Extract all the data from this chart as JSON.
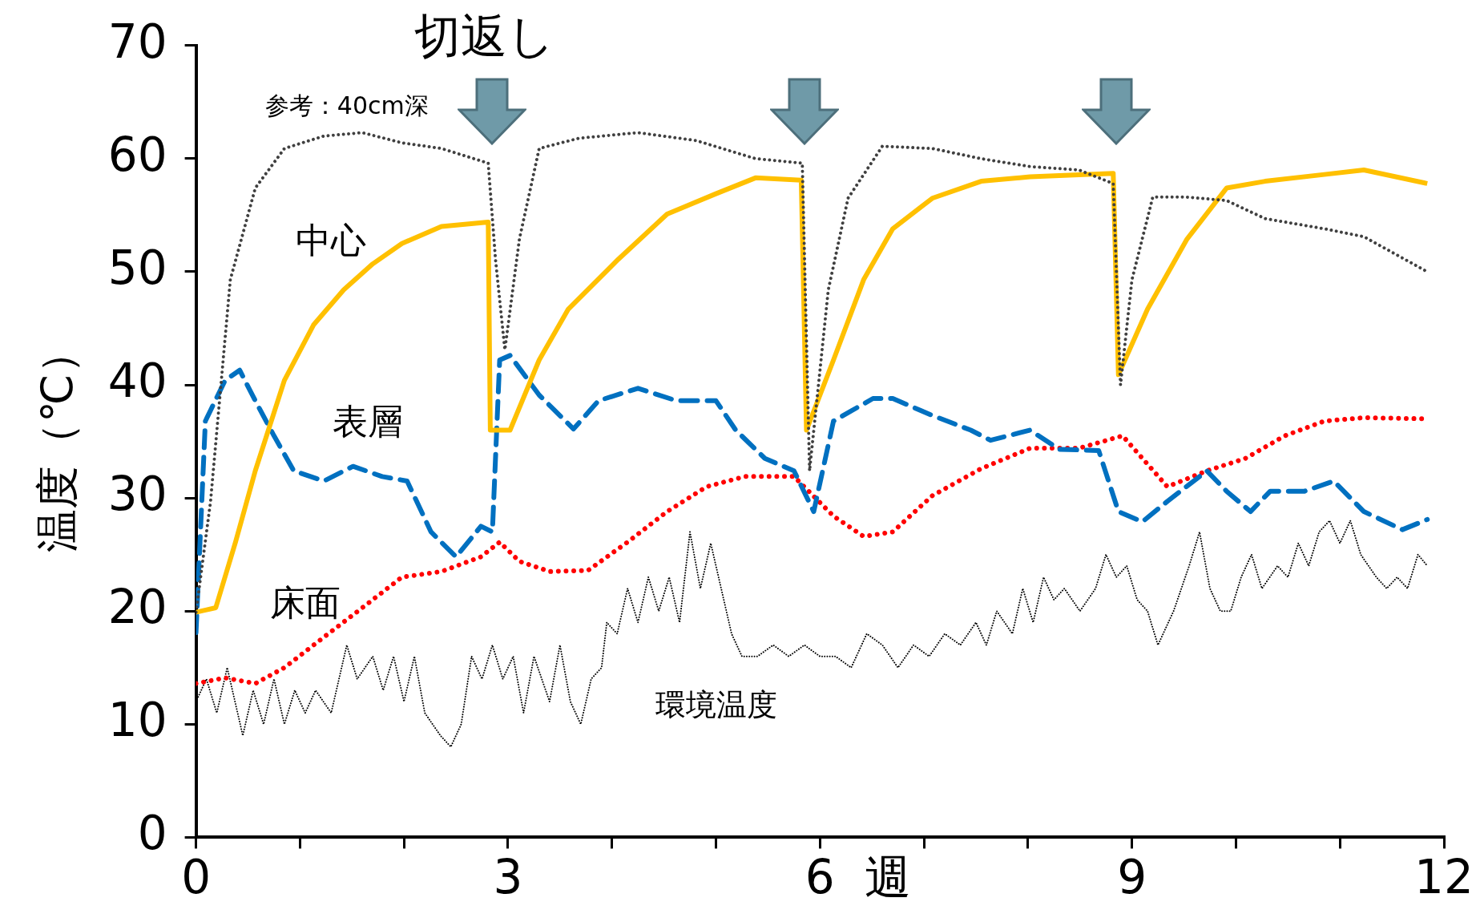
{
  "chart_data": {
    "type": "line",
    "xlabel": "週",
    "ylabel": "温度（℃）",
    "annotations": [
      "切返し"
    ],
    "xlim": [
      0,
      12
    ],
    "xticks": [
      0,
      {
        "value": 1,
        "label": null
      },
      {
        "value": 2,
        "label": null
      },
      3,
      {
        "value": 4,
        "label": null
      },
      {
        "value": 5,
        "label": null
      },
      6,
      {
        "value": 7,
        "label": null
      },
      {
        "value": 8,
        "label": null
      },
      9,
      {
        "value": 10,
        "label": null
      },
      {
        "value": 11,
        "label": null
      },
      12
    ],
    "ylim": [
      0,
      70
    ],
    "yticks": [
      0,
      10,
      20,
      30,
      40,
      50,
      60,
      70
    ],
    "grid": false,
    "legend": false,
    "marker": "none",
    "series": [
      {
        "name": "参考：40cm深",
        "color": "#404040",
        "line_style": "dotted",
        "x": [
          0,
          0.14,
          0.33,
          0.57,
          0.85,
          1.23,
          1.6,
          1.98,
          2.36,
          2.81,
          2.88,
          2.97,
          3.11,
          3.3,
          3.68,
          4.25,
          4.81,
          5.38,
          5.83,
          5.9,
          6.08,
          6.27,
          6.6,
          7.08,
          7.55,
          8.02,
          8.49,
          8.82,
          8.89,
          9.0,
          9.2,
          9.53,
          9.91,
          10.28,
          10.85,
          11.23,
          11.84
        ],
        "values": [
          19.9,
          29.7,
          49.3,
          57.4,
          60.9,
          62,
          62.3,
          61.4,
          60.9,
          59.6,
          51.1,
          43.1,
          52.9,
          60.9,
          61.8,
          62.3,
          61.6,
          60,
          59.6,
          32.4,
          48.4,
          56.5,
          61.1,
          60.9,
          60,
          59.3,
          59,
          57.8,
          40,
          49.3,
          56.6,
          56.6,
          56.3,
          54.7,
          53.8,
          53.1,
          50
        ]
      },
      {
        "name": "中心",
        "color": "#ffc000",
        "line_style": "solid",
        "x": [
          0,
          0.19,
          0.38,
          0.57,
          0.85,
          1.13,
          1.42,
          1.7,
          1.98,
          2.36,
          2.81,
          2.83,
          3.02,
          3.3,
          3.58,
          4.06,
          4.53,
          5.0,
          5.38,
          5.82,
          5.87,
          6.13,
          6.42,
          6.7,
          7.08,
          7.55,
          8.02,
          8.82,
          8.87,
          9.15,
          9.53,
          9.91,
          10.28,
          10.85,
          11.23,
          11.84
        ],
        "values": [
          19.9,
          20.3,
          26.1,
          32.4,
          40.4,
          45.3,
          48.4,
          50.7,
          52.5,
          54,
          54.4,
          36,
          36,
          42.2,
          46.7,
          51.1,
          55.1,
          56.9,
          58.3,
          58.1,
          36,
          42.2,
          49.3,
          53.8,
          56.5,
          58,
          58.4,
          58.7,
          40.9,
          46.7,
          52.9,
          57.4,
          58,
          58.6,
          59,
          57.8
        ]
      },
      {
        "name": "表層",
        "color": "#0070c0",
        "line_style": "dashed",
        "x": [
          0,
          0.09,
          0.28,
          0.42,
          0.57,
          0.75,
          0.94,
          1.23,
          1.51,
          1.79,
          2.03,
          2.26,
          2.5,
          2.74,
          2.85,
          2.92,
          3.02,
          3.3,
          3.63,
          3.87,
          4.25,
          4.62,
          5.0,
          5.19,
          5.47,
          5.75,
          5.94,
          6.13,
          6.51,
          6.7,
          7.08,
          7.45,
          7.64,
          8.02,
          8.3,
          8.68,
          8.87,
          9.1,
          9.34,
          9.72,
          9.91,
          10.14,
          10.33,
          10.66,
          10.94,
          11.23,
          11.6,
          11.84
        ],
        "values": [
          18.1,
          36.8,
          40.4,
          41.3,
          38.6,
          35.5,
          32.4,
          31.5,
          32.8,
          31.9,
          31.5,
          27,
          24.8,
          27.5,
          27,
          42.2,
          42.6,
          39.1,
          36.1,
          38.6,
          39.7,
          38.6,
          38.6,
          36,
          33.5,
          32.4,
          28.8,
          36.8,
          38.8,
          38.8,
          37.3,
          36,
          35.1,
          36,
          34.3,
          34.2,
          28.8,
          27.9,
          29.7,
          32.4,
          30.6,
          28.8,
          30.6,
          30.6,
          31.5,
          28.8,
          27.2,
          28.1
        ]
      },
      {
        "name": "床面",
        "color": "#ff0000",
        "line_style": "dotted",
        "x": [
          0,
          0.28,
          0.57,
          0.85,
          1.23,
          1.6,
          1.98,
          2.36,
          2.74,
          2.92,
          3.11,
          3.4,
          3.77,
          4.15,
          4.53,
          4.91,
          5.28,
          5.75,
          6.13,
          6.42,
          6.7,
          7.08,
          7.55,
          8.02,
          8.49,
          8.91,
          9.34,
          9.72,
          10.09,
          10.47,
          10.85,
          11.23,
          11.84
        ],
        "values": [
          13.6,
          14.1,
          13.6,
          15,
          17.7,
          20.3,
          23,
          23.5,
          24.8,
          26.1,
          24.4,
          23.5,
          23.6,
          26.1,
          28.8,
          31,
          31.9,
          31.9,
          28.4,
          26.6,
          27,
          30.2,
          32.6,
          34.4,
          34.4,
          35.5,
          31,
          32.4,
          33.5,
          35.5,
          36.8,
          37.1,
          37
        ]
      },
      {
        "name": "環境温度",
        "color": "#000000",
        "line_style": "dotted",
        "x": [
          0,
          0.1,
          0.2,
          0.3,
          0.45,
          0.55,
          0.65,
          0.75,
          0.85,
          0.95,
          1.05,
          1.15,
          1.3,
          1.45,
          1.55,
          1.7,
          1.8,
          1.9,
          2.0,
          2.1,
          2.2,
          2.35,
          2.45,
          2.55,
          2.65,
          2.75,
          2.85,
          2.95,
          3.05,
          3.15,
          3.25,
          3.4,
          3.5,
          3.6,
          3.7,
          3.8,
          3.9,
          3.95,
          4.05,
          4.15,
          4.25,
          4.35,
          4.45,
          4.55,
          4.65,
          4.75,
          4.85,
          4.95,
          5.05,
          5.15,
          5.25,
          5.4,
          5.55,
          5.7,
          5.85,
          6.0,
          6.15,
          6.3,
          6.45,
          6.6,
          6.75,
          6.9,
          7.05,
          7.2,
          7.35,
          7.5,
          7.6,
          7.7,
          7.85,
          7.95,
          8.05,
          8.15,
          8.25,
          8.35,
          8.5,
          8.65,
          8.75,
          8.85,
          8.95,
          9.05,
          9.15,
          9.25,
          9.4,
          9.55,
          9.65,
          9.75,
          9.85,
          9.95,
          10.05,
          10.15,
          10.25,
          10.4,
          10.5,
          10.6,
          10.7,
          10.8,
          10.9,
          11.0,
          11.1,
          11.2,
          11.35,
          11.45,
          11.55,
          11.65,
          11.75,
          11.84
        ],
        "values": [
          12,
          14,
          11,
          15,
          9,
          13,
          10,
          14,
          10,
          13,
          11,
          13,
          11,
          17,
          14,
          16,
          13,
          16,
          12,
          16,
          11,
          9,
          8,
          10,
          16,
          14,
          17,
          14,
          16,
          11,
          16,
          12,
          17,
          12,
          10,
          14,
          15,
          19,
          18,
          22,
          19,
          23,
          20,
          23,
          19,
          27,
          22,
          26,
          22,
          18,
          16,
          16,
          17,
          16,
          17,
          16,
          16,
          15,
          18,
          17,
          15,
          17,
          16,
          18,
          17,
          19,
          17,
          20,
          18,
          22,
          19,
          23,
          21,
          22,
          20,
          22,
          25,
          23,
          24,
          21,
          20,
          17,
          20,
          24,
          27,
          22,
          20,
          20,
          23,
          25,
          22,
          24,
          23,
          26,
          24,
          27,
          28,
          26,
          28,
          25,
          23,
          22,
          23,
          22,
          25,
          24
        ]
      }
    ]
  }
}
